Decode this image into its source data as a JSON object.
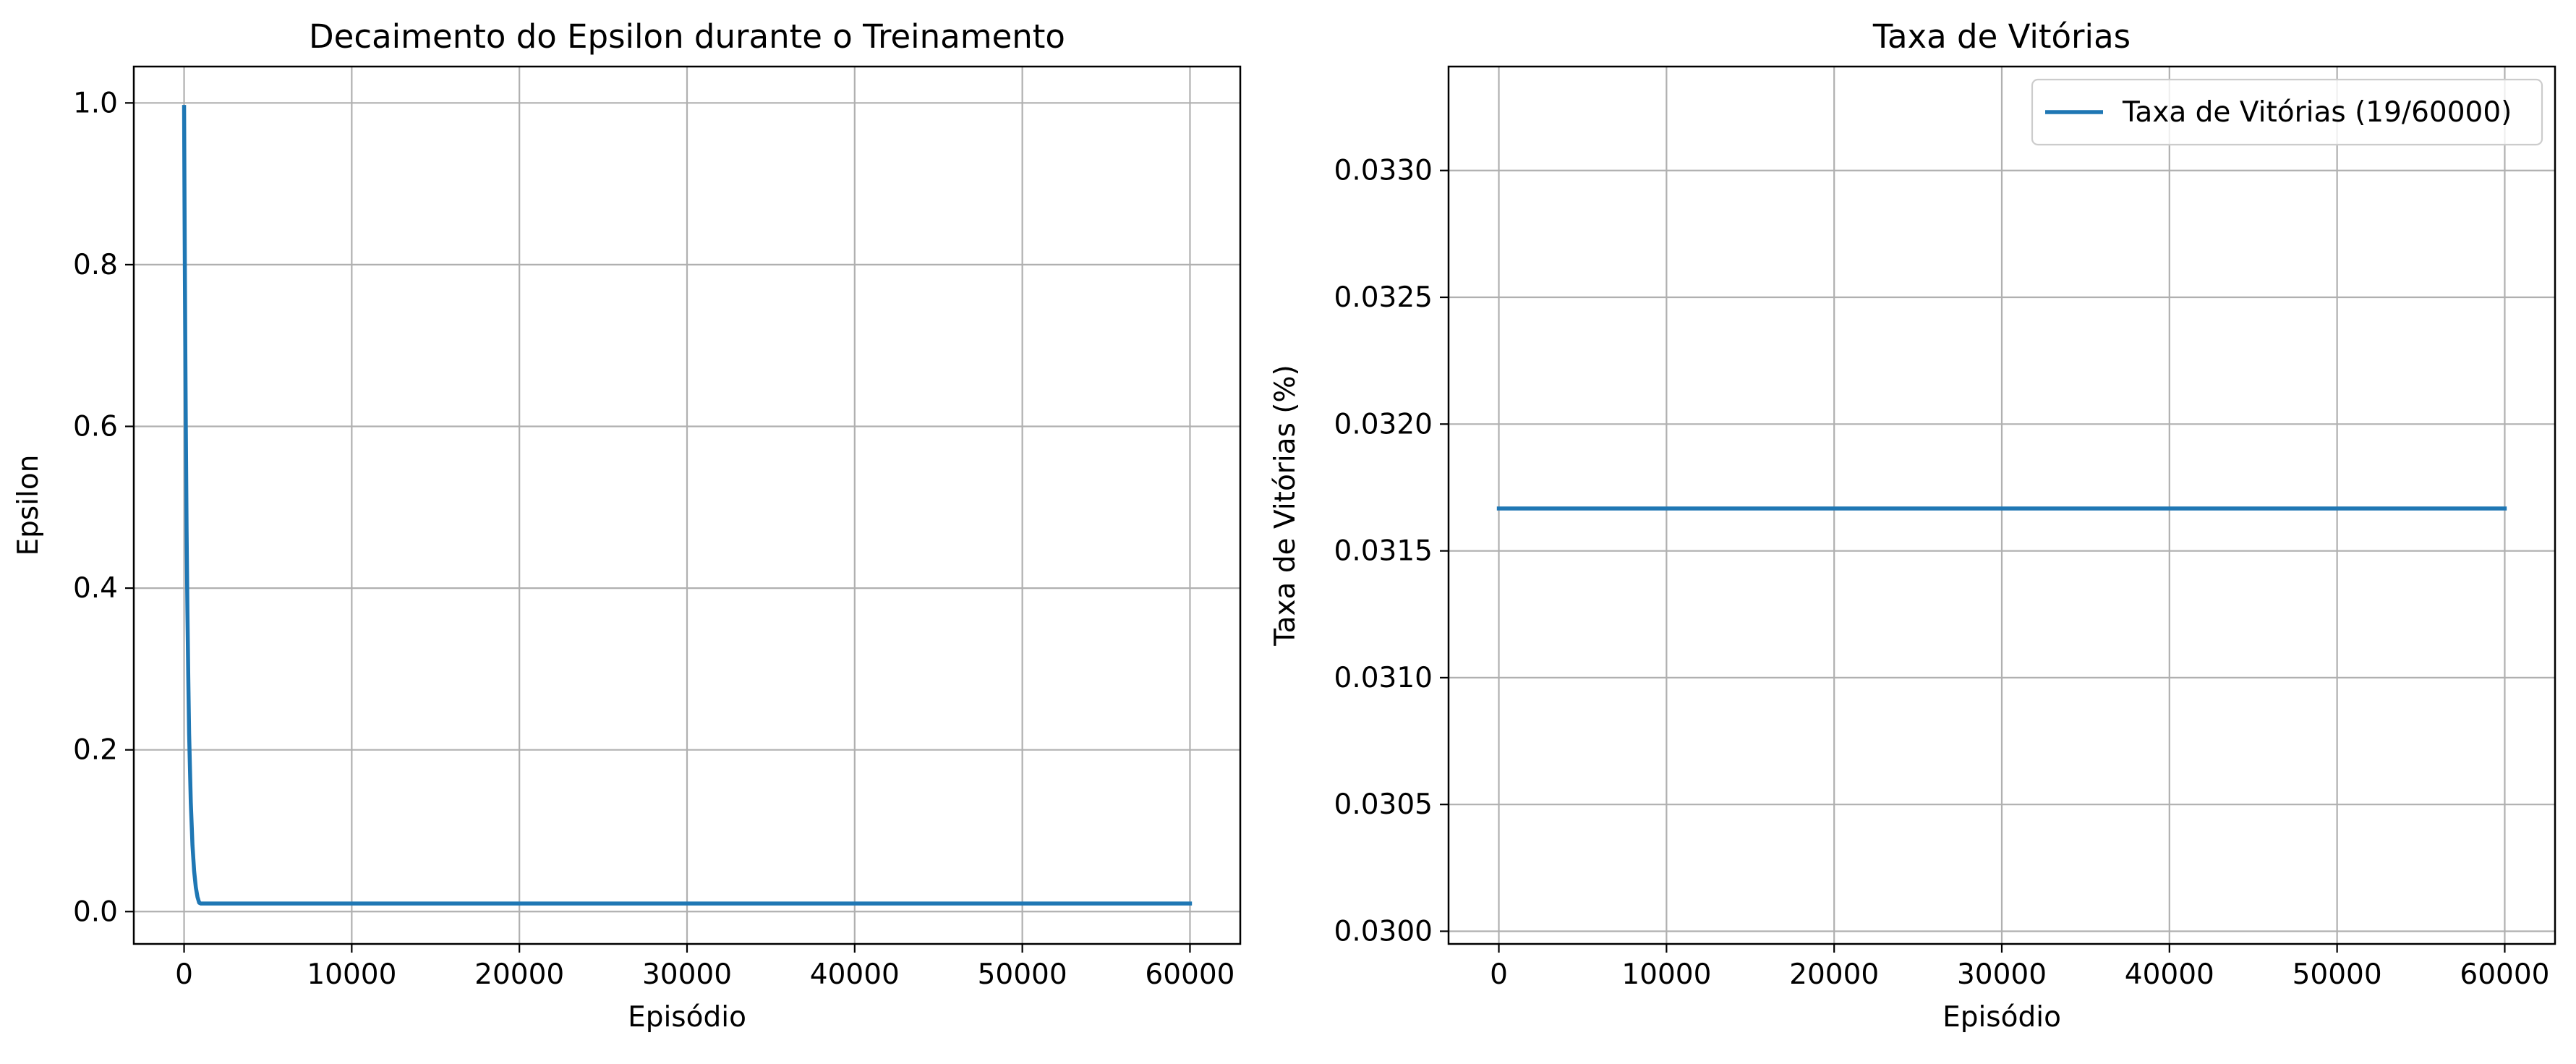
{
  "colors": {
    "series": "#1f77b4",
    "grid": "#b0b0b0",
    "axes": "#000000",
    "background": "#ffffff",
    "legend_border": "#cccccc"
  },
  "chart_data": [
    {
      "type": "line",
      "title": "Decaimento do Epsilon durante o Treinamento",
      "xlabel": "Episódio",
      "ylabel": "Epsilon",
      "xlim": [
        -3000,
        63000
      ],
      "ylim": [
        -0.04,
        1.045
      ],
      "x_ticks": [
        0,
        10000,
        20000,
        30000,
        40000,
        50000,
        60000
      ],
      "x_tick_labels": [
        "0",
        "10000",
        "20000",
        "30000",
        "40000",
        "50000",
        "60000"
      ],
      "y_ticks": [
        0.0,
        0.2,
        0.4,
        0.6,
        0.8,
        1.0
      ],
      "y_tick_labels": [
        "0.0",
        "0.2",
        "0.4",
        "0.6",
        "0.8",
        "1.0"
      ],
      "grid": true,
      "legend": null,
      "series": [
        {
          "x": [
            0,
            25,
            50,
            75,
            100,
            150,
            200,
            250,
            300,
            400,
            500,
            600,
            700,
            800,
            900,
            1000,
            2000,
            10000,
            20000,
            30000,
            40000,
            50000,
            60000
          ],
          "values": [
            0.995,
            0.88,
            0.78,
            0.69,
            0.61,
            0.47,
            0.37,
            0.29,
            0.22,
            0.135,
            0.082,
            0.05,
            0.03,
            0.018,
            0.011,
            0.01,
            0.01,
            0.01,
            0.01,
            0.01,
            0.01,
            0.01,
            0.01
          ]
        }
      ]
    },
    {
      "type": "line",
      "title": "Taxa de Vitórias",
      "xlabel": "Episódio",
      "ylabel": "Taxa de Vitórias (%)",
      "xlim": [
        -3000,
        63000
      ],
      "ylim": [
        0.02995,
        0.03341
      ],
      "x_ticks": [
        0,
        10000,
        20000,
        30000,
        40000,
        50000,
        60000
      ],
      "x_tick_labels": [
        "0",
        "10000",
        "20000",
        "30000",
        "40000",
        "50000",
        "60000"
      ],
      "y_ticks": [
        0.03,
        0.0305,
        0.031,
        0.0315,
        0.032,
        0.0325,
        0.033
      ],
      "y_tick_labels": [
        "0.0300",
        "0.0305",
        "0.0310",
        "0.0315",
        "0.0320",
        "0.0325",
        "0.0330"
      ],
      "grid": true,
      "legend": "top-right",
      "series": [
        {
          "name": "Taxa de Vitórias (19/60000)",
          "x": [
            0,
            60000
          ],
          "values": [
            0.031667,
            0.031667
          ]
        }
      ]
    }
  ]
}
